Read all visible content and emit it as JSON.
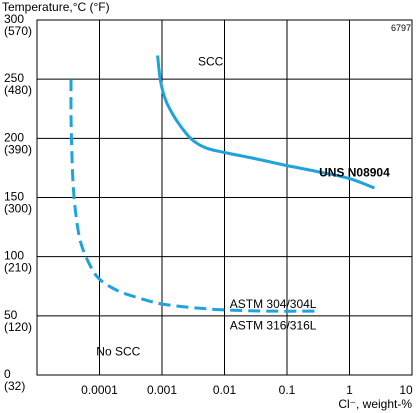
{
  "chart_data": {
    "type": "line",
    "figure_id": "6797",
    "y_axis_title": "Temperature,°C (°F)",
    "x_axis_title": "Cl⁻, weight-%",
    "x_scale": "log",
    "xlim": [
      1e-05,
      10
    ],
    "ylim": [
      0,
      300
    ],
    "grid": true,
    "x_ticks": [
      {
        "value": 0.0001,
        "label": "0.0001"
      },
      {
        "value": 0.001,
        "label": "0.001"
      },
      {
        "value": 0.01,
        "label": "0.01"
      },
      {
        "value": 0.1,
        "label": "0.1"
      },
      {
        "value": 1,
        "label": "1"
      },
      {
        "value": 10,
        "label": "10"
      }
    ],
    "y_ticks": [
      {
        "value": 0,
        "c": "0",
        "f": "(32)"
      },
      {
        "value": 50,
        "c": "50",
        "f": "(120)"
      },
      {
        "value": 100,
        "c": "100",
        "f": "(210)"
      },
      {
        "value": 150,
        "c": "150",
        "f": "(300)"
      },
      {
        "value": 200,
        "c": "200",
        "f": "(390)"
      },
      {
        "value": 250,
        "c": "250",
        "f": "(480)"
      },
      {
        "value": 300,
        "c": "300",
        "f": "(570)"
      }
    ],
    "regions": [
      {
        "label": "SCC",
        "x": 0.006,
        "y": 265
      },
      {
        "label": "No SCC",
        "x": 0.0002,
        "y": 20
      }
    ],
    "series": [
      {
        "name": "UNS N08904",
        "style": "solid",
        "color": "#1fa3dc",
        "points": [
          {
            "x": 0.00085,
            "y": 270
          },
          {
            "x": 0.00095,
            "y": 248
          },
          {
            "x": 0.00115,
            "y": 232
          },
          {
            "x": 0.0015,
            "y": 220
          },
          {
            "x": 0.002,
            "y": 210
          },
          {
            "x": 0.003,
            "y": 199
          },
          {
            "x": 0.005,
            "y": 192
          },
          {
            "x": 0.01,
            "y": 188
          },
          {
            "x": 0.03,
            "y": 183
          },
          {
            "x": 0.1,
            "y": 177
          },
          {
            "x": 0.3,
            "y": 172
          },
          {
            "x": 1,
            "y": 166
          },
          {
            "x": 2.5,
            "y": 158
          }
        ]
      },
      {
        "name": "ASTM 304/304L",
        "name2": "ASTM 316/316L",
        "style": "dashed",
        "color": "#1fa3dc",
        "points": [
          {
            "x": 3.5e-05,
            "y": 250
          },
          {
            "x": 3.5e-05,
            "y": 220
          },
          {
            "x": 3.6e-05,
            "y": 190
          },
          {
            "x": 3.8e-05,
            "y": 160
          },
          {
            "x": 4.2e-05,
            "y": 135
          },
          {
            "x": 5e-05,
            "y": 112
          },
          {
            "x": 7e-05,
            "y": 93
          },
          {
            "x": 0.0001,
            "y": 81
          },
          {
            "x": 0.0002,
            "y": 71
          },
          {
            "x": 0.0005,
            "y": 64
          },
          {
            "x": 0.001,
            "y": 60
          },
          {
            "x": 0.003,
            "y": 57
          },
          {
            "x": 0.01,
            "y": 55
          },
          {
            "x": 0.05,
            "y": 54
          },
          {
            "x": 0.3,
            "y": 54
          }
        ]
      }
    ],
    "series_labels": {
      "uns": "UNS N08904",
      "astm304": "ASTM 304/304L",
      "astm316": "ASTM 316/316L"
    }
  }
}
